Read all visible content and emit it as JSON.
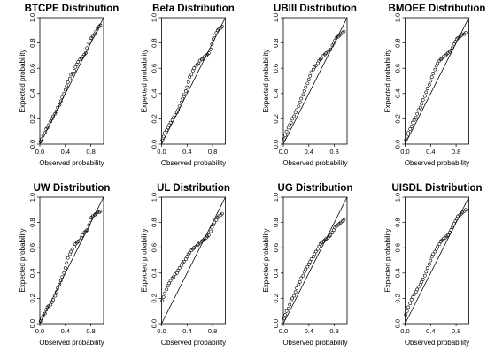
{
  "layout": {
    "rows": 2,
    "cols": 4
  },
  "chart_data": [
    {
      "type": "scatter",
      "title": "BTCPE Distribution",
      "xlabel": "Observed probability",
      "ylabel": "Expected probability",
      "xlim": [
        0,
        1
      ],
      "ylim": [
        0,
        1
      ],
      "xticks": [
        "0.0",
        "0.4",
        "0.8"
      ],
      "yticks": [
        "0.0",
        "0.2",
        "0.4",
        "0.6",
        "0.8",
        "1.0"
      ],
      "reference_line": "y = x",
      "points": {
        "x": [
          0.01,
          0.03,
          0.05,
          0.08,
          0.1,
          0.12,
          0.14,
          0.17,
          0.19,
          0.21,
          0.24,
          0.26,
          0.28,
          0.31,
          0.33,
          0.35,
          0.38,
          0.4,
          0.42,
          0.44,
          0.47,
          0.49,
          0.51,
          0.54,
          0.56,
          0.58,
          0.6,
          0.63,
          0.65,
          0.67,
          0.7,
          0.72,
          0.74,
          0.77,
          0.79,
          0.81,
          0.83,
          0.86,
          0.88,
          0.9,
          0.93,
          0.95
        ],
        "y": [
          0.02,
          0.04,
          0.07,
          0.09,
          0.12,
          0.13,
          0.15,
          0.18,
          0.2,
          0.22,
          0.24,
          0.26,
          0.29,
          0.31,
          0.34,
          0.37,
          0.4,
          0.43,
          0.46,
          0.49,
          0.52,
          0.55,
          0.56,
          0.58,
          0.61,
          0.63,
          0.65,
          0.67,
          0.68,
          0.69,
          0.71,
          0.72,
          0.76,
          0.8,
          0.82,
          0.84,
          0.85,
          0.87,
          0.89,
          0.91,
          0.93,
          0.94
        ]
      }
    },
    {
      "type": "scatter",
      "title": "Beta Distribution",
      "xlabel": "Observed probability",
      "ylabel": "Expected probability",
      "xlim": [
        0,
        1
      ],
      "ylim": [
        0,
        1
      ],
      "xticks": [
        "0.0",
        "0.4",
        "0.8"
      ],
      "yticks": [
        "0.0",
        "0.2",
        "0.4",
        "0.6",
        "0.8",
        "1.0"
      ],
      "reference_line": "y = x",
      "points": {
        "x": [
          0.01,
          0.03,
          0.05,
          0.08,
          0.1,
          0.12,
          0.14,
          0.17,
          0.19,
          0.21,
          0.24,
          0.26,
          0.28,
          0.31,
          0.33,
          0.35,
          0.38,
          0.4,
          0.42,
          0.44,
          0.47,
          0.49,
          0.51,
          0.54,
          0.56,
          0.58,
          0.6,
          0.63,
          0.65,
          0.67,
          0.7,
          0.72,
          0.74,
          0.77,
          0.79,
          0.81,
          0.83,
          0.86,
          0.88,
          0.9,
          0.93,
          0.95
        ],
        "y": [
          0.03,
          0.06,
          0.09,
          0.11,
          0.13,
          0.15,
          0.17,
          0.19,
          0.21,
          0.23,
          0.25,
          0.27,
          0.3,
          0.33,
          0.36,
          0.39,
          0.42,
          0.45,
          0.49,
          0.53,
          0.55,
          0.58,
          0.6,
          0.62,
          0.63,
          0.64,
          0.66,
          0.67,
          0.68,
          0.69,
          0.7,
          0.71,
          0.72,
          0.75,
          0.79,
          0.83,
          0.86,
          0.88,
          0.9,
          0.91,
          0.92,
          0.93
        ]
      }
    },
    {
      "type": "scatter",
      "title": "UBIII Distribution",
      "xlabel": "Observed probability",
      "ylabel": "Expected probability",
      "xlim": [
        0,
        1
      ],
      "ylim": [
        0,
        1
      ],
      "xticks": [
        "0.0",
        "0.4",
        "0.8"
      ],
      "yticks": [
        "0.0",
        "0.2",
        "0.4",
        "0.6",
        "0.8",
        "1.0"
      ],
      "reference_line": "y = x",
      "points": {
        "x": [
          0.01,
          0.03,
          0.05,
          0.08,
          0.1,
          0.12,
          0.14,
          0.17,
          0.19,
          0.21,
          0.24,
          0.26,
          0.28,
          0.31,
          0.33,
          0.35,
          0.38,
          0.4,
          0.42,
          0.44,
          0.47,
          0.49,
          0.51,
          0.54,
          0.56,
          0.58,
          0.6,
          0.63,
          0.65,
          0.67,
          0.7,
          0.72,
          0.74,
          0.77,
          0.79,
          0.81,
          0.83,
          0.86,
          0.88,
          0.9,
          0.93,
          0.95
        ],
        "y": [
          0.04,
          0.07,
          0.1,
          0.13,
          0.15,
          0.17,
          0.2,
          0.22,
          0.25,
          0.27,
          0.3,
          0.33,
          0.36,
          0.39,
          0.42,
          0.45,
          0.48,
          0.51,
          0.54,
          0.57,
          0.59,
          0.61,
          0.62,
          0.64,
          0.66,
          0.67,
          0.68,
          0.7,
          0.71,
          0.72,
          0.73,
          0.74,
          0.75,
          0.78,
          0.8,
          0.82,
          0.84,
          0.85,
          0.86,
          0.87,
          0.88,
          0.89
        ]
      }
    },
    {
      "type": "scatter",
      "title": "BMOEE Distribution",
      "xlabel": "Observed probability",
      "ylabel": "Expected probability",
      "xlim": [
        0,
        1
      ],
      "ylim": [
        0,
        1
      ],
      "xticks": [
        "0.0",
        "0.4",
        "0.8"
      ],
      "yticks": [
        "0.0",
        "0.2",
        "0.4",
        "0.6",
        "0.8",
        "1.0"
      ],
      "reference_line": "y = x",
      "points": {
        "x": [
          0.01,
          0.03,
          0.05,
          0.08,
          0.1,
          0.12,
          0.14,
          0.17,
          0.19,
          0.21,
          0.24,
          0.26,
          0.28,
          0.31,
          0.33,
          0.35,
          0.38,
          0.4,
          0.42,
          0.44,
          0.47,
          0.49,
          0.51,
          0.54,
          0.56,
          0.58,
          0.6,
          0.63,
          0.65,
          0.67,
          0.7,
          0.72,
          0.74,
          0.77,
          0.79,
          0.81,
          0.83,
          0.86,
          0.88,
          0.9,
          0.93,
          0.95
        ],
        "y": [
          0.03,
          0.06,
          0.09,
          0.12,
          0.14,
          0.17,
          0.19,
          0.21,
          0.24,
          0.27,
          0.29,
          0.32,
          0.35,
          0.38,
          0.41,
          0.44,
          0.47,
          0.5,
          0.53,
          0.56,
          0.59,
          0.62,
          0.64,
          0.66,
          0.67,
          0.68,
          0.69,
          0.7,
          0.71,
          0.72,
          0.73,
          0.74,
          0.76,
          0.79,
          0.81,
          0.83,
          0.84,
          0.85,
          0.86,
          0.87,
          0.87,
          0.88
        ]
      }
    },
    {
      "type": "scatter",
      "title": "UW Distribution",
      "xlabel": "Observed probability",
      "ylabel": "Expected probability",
      "xlim": [
        0,
        1
      ],
      "ylim": [
        0,
        1
      ],
      "xticks": [
        "0.0",
        "0.4",
        "0.8"
      ],
      "yticks": [
        "0.0",
        "0.2",
        "0.4",
        "0.6",
        "0.8",
        "1.0"
      ],
      "reference_line": "y = x",
      "points": {
        "x": [
          0.01,
          0.03,
          0.05,
          0.08,
          0.1,
          0.12,
          0.14,
          0.17,
          0.19,
          0.21,
          0.24,
          0.26,
          0.28,
          0.31,
          0.33,
          0.35,
          0.38,
          0.4,
          0.42,
          0.44,
          0.47,
          0.49,
          0.51,
          0.54,
          0.56,
          0.58,
          0.6,
          0.63,
          0.65,
          0.67,
          0.7,
          0.72,
          0.74,
          0.77,
          0.79,
          0.81,
          0.83,
          0.86,
          0.88,
          0.9,
          0.93,
          0.95
        ],
        "y": [
          0.02,
          0.04,
          0.06,
          0.08,
          0.11,
          0.13,
          0.14,
          0.15,
          0.17,
          0.19,
          0.22,
          0.25,
          0.28,
          0.31,
          0.34,
          0.37,
          0.4,
          0.44,
          0.48,
          0.52,
          0.55,
          0.57,
          0.59,
          0.61,
          0.63,
          0.64,
          0.65,
          0.66,
          0.68,
          0.7,
          0.72,
          0.73,
          0.74,
          0.78,
          0.82,
          0.84,
          0.85,
          0.86,
          0.87,
          0.88,
          0.88,
          0.89
        ]
      }
    },
    {
      "type": "scatter",
      "title": "UL Distribution",
      "xlabel": "Observed probability",
      "ylabel": "Expected probability",
      "xlim": [
        0,
        1
      ],
      "ylim": [
        0,
        1
      ],
      "xticks": [
        "0.0",
        "0.4",
        "0.8"
      ],
      "yticks": [
        "0.0",
        "0.2",
        "0.4",
        "0.6",
        "0.8",
        "1.0"
      ],
      "reference_line": "y = x",
      "points": {
        "x": [
          0.01,
          0.03,
          0.05,
          0.08,
          0.1,
          0.12,
          0.14,
          0.17,
          0.19,
          0.21,
          0.24,
          0.26,
          0.28,
          0.31,
          0.33,
          0.35,
          0.38,
          0.4,
          0.42,
          0.44,
          0.47,
          0.49,
          0.51,
          0.54,
          0.56,
          0.58,
          0.6,
          0.63,
          0.65,
          0.67,
          0.7,
          0.72,
          0.74,
          0.77,
          0.79,
          0.81,
          0.83,
          0.86,
          0.88,
          0.9,
          0.93,
          0.95
        ],
        "y": [
          0.18,
          0.21,
          0.24,
          0.27,
          0.3,
          0.32,
          0.34,
          0.36,
          0.37,
          0.39,
          0.4,
          0.42,
          0.44,
          0.46,
          0.48,
          0.49,
          0.51,
          0.53,
          0.55,
          0.56,
          0.58,
          0.59,
          0.6,
          0.61,
          0.62,
          0.63,
          0.64,
          0.65,
          0.66,
          0.67,
          0.68,
          0.69,
          0.7,
          0.73,
          0.76,
          0.78,
          0.8,
          0.82,
          0.84,
          0.85,
          0.86,
          0.87
        ]
      }
    },
    {
      "type": "scatter",
      "title": "UG Distribution",
      "xlabel": "Observed probability",
      "ylabel": "Expected probability",
      "xlim": [
        0,
        1
      ],
      "ylim": [
        0,
        1
      ],
      "xticks": [
        "0.0",
        "0.4",
        "0.8"
      ],
      "yticks": [
        "0.0",
        "0.2",
        "0.4",
        "0.6",
        "0.8",
        "1.0"
      ],
      "reference_line": "y = x",
      "points": {
        "x": [
          0.01,
          0.03,
          0.05,
          0.08,
          0.1,
          0.12,
          0.14,
          0.17,
          0.19,
          0.21,
          0.24,
          0.26,
          0.28,
          0.31,
          0.33,
          0.35,
          0.38,
          0.4,
          0.42,
          0.44,
          0.47,
          0.49,
          0.51,
          0.54,
          0.56,
          0.58,
          0.6,
          0.63,
          0.65,
          0.67,
          0.7,
          0.72,
          0.74,
          0.77,
          0.79,
          0.81,
          0.83,
          0.86,
          0.88,
          0.9,
          0.93,
          0.95
        ],
        "y": [
          0.04,
          0.07,
          0.1,
          0.12,
          0.15,
          0.18,
          0.2,
          0.22,
          0.25,
          0.28,
          0.31,
          0.33,
          0.36,
          0.38,
          0.41,
          0.43,
          0.45,
          0.47,
          0.49,
          0.51,
          0.53,
          0.55,
          0.57,
          0.59,
          0.61,
          0.63,
          0.64,
          0.65,
          0.66,
          0.67,
          0.68,
          0.69,
          0.7,
          0.72,
          0.74,
          0.76,
          0.77,
          0.78,
          0.79,
          0.8,
          0.81,
          0.82
        ]
      }
    },
    {
      "type": "scatter",
      "title": "UISDL Distribution",
      "xlabel": "Observed probability",
      "ylabel": "Expected probability",
      "xlim": [
        0,
        1
      ],
      "ylim": [
        0,
        1
      ],
      "xticks": [
        "0.0",
        "0.4",
        "0.8"
      ],
      "yticks": [
        "0.0",
        "0.2",
        "0.4",
        "0.6",
        "0.8",
        "1.0"
      ],
      "reference_line": "y = x",
      "points": {
        "x": [
          0.01,
          0.03,
          0.05,
          0.08,
          0.1,
          0.12,
          0.14,
          0.17,
          0.19,
          0.21,
          0.24,
          0.26,
          0.28,
          0.31,
          0.33,
          0.35,
          0.38,
          0.4,
          0.42,
          0.44,
          0.47,
          0.49,
          0.51,
          0.54,
          0.56,
          0.58,
          0.6,
          0.63,
          0.65,
          0.67,
          0.7,
          0.72,
          0.74,
          0.77,
          0.79,
          0.81,
          0.83,
          0.86,
          0.88,
          0.9,
          0.93,
          0.95
        ],
        "y": [
          0.07,
          0.1,
          0.13,
          0.16,
          0.19,
          0.21,
          0.23,
          0.25,
          0.27,
          0.29,
          0.31,
          0.33,
          0.35,
          0.38,
          0.41,
          0.44,
          0.47,
          0.5,
          0.53,
          0.55,
          0.57,
          0.59,
          0.61,
          0.63,
          0.65,
          0.66,
          0.67,
          0.68,
          0.69,
          0.7,
          0.72,
          0.74,
          0.76,
          0.79,
          0.81,
          0.83,
          0.85,
          0.86,
          0.87,
          0.88,
          0.89,
          0.9
        ]
      }
    }
  ]
}
